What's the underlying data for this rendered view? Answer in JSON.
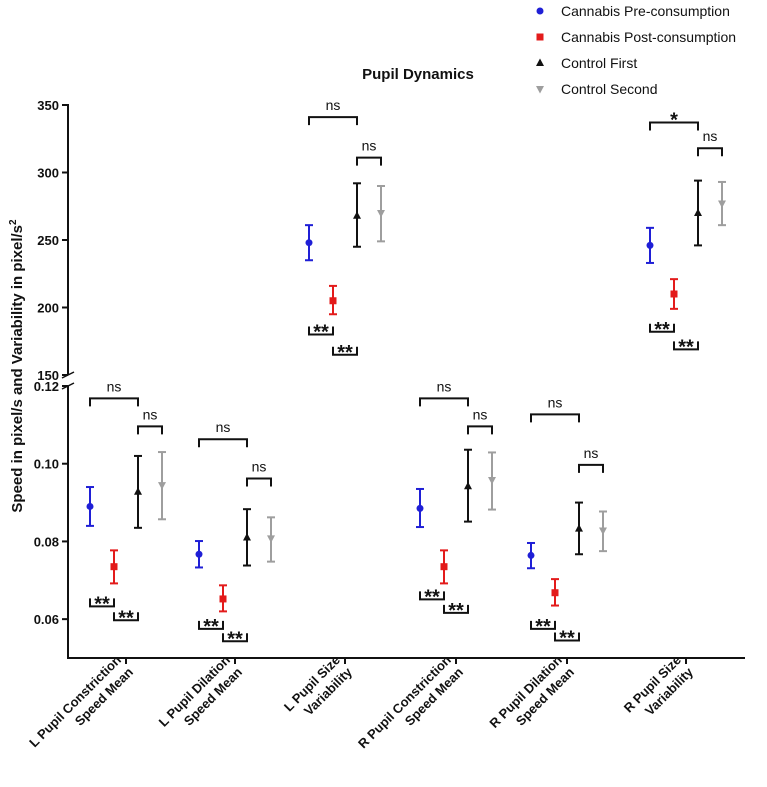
{
  "chart_data": {
    "type": "scatter",
    "title": "Pupil Dynamics",
    "ylabel": "Speed in pixel/s and Variability in pixel/s",
    "ylabel_sup": "2",
    "y_axis": {
      "broken": true,
      "lower": {
        "range": [
          0.05,
          0.12
        ],
        "ticks": [
          "0.06",
          "0.08",
          "0.10",
          "0.12"
        ]
      },
      "upper": {
        "range": [
          150,
          350
        ],
        "ticks": [
          "150",
          "200",
          "250",
          "300",
          "350"
        ]
      }
    },
    "categories": [
      [
        "L Pupil Constriction",
        "Speed Mean"
      ],
      [
        "L Pupil Dilation",
        "Speed Mean"
      ],
      [
        "L Pupil Size",
        "Variability"
      ],
      [
        "R Pupil Constriction",
        "Speed Mean"
      ],
      [
        "R Pupil Dilation",
        "Speed Mean"
      ],
      [
        "R Pupil Size",
        "Variability"
      ]
    ],
    "series": [
      {
        "name": "Cannabis Pre-consumption",
        "color": "#1f1fd6",
        "marker": "circle",
        "points": [
          {
            "mean": 0.089,
            "low": 0.084,
            "high": 0.094
          },
          {
            "mean": 0.0767,
            "low": 0.0733,
            "high": 0.0801
          },
          {
            "mean": 248,
            "low": 235,
            "high": 261
          },
          {
            "mean": 0.0885,
            "low": 0.0837,
            "high": 0.0935
          },
          {
            "mean": 0.0764,
            "low": 0.0731,
            "high": 0.0796
          },
          {
            "mean": 246,
            "low": 233,
            "high": 259
          }
        ]
      },
      {
        "name": "Cannabis Post-consumption",
        "color": "#e31b1b",
        "marker": "square",
        "points": [
          {
            "mean": 0.0735,
            "low": 0.0692,
            "high": 0.0777
          },
          {
            "mean": 0.0652,
            "low": 0.062,
            "high": 0.0687
          },
          {
            "mean": 205,
            "low": 195,
            "high": 216
          },
          {
            "mean": 0.0735,
            "low": 0.0692,
            "high": 0.0777
          },
          {
            "mean": 0.0668,
            "low": 0.0635,
            "high": 0.0703
          },
          {
            "mean": 210,
            "low": 199,
            "high": 221
          }
        ]
      },
      {
        "name": "Control First",
        "color": "#111111",
        "marker": "triangle-up",
        "points": [
          {
            "mean": 0.0928,
            "low": 0.0835,
            "high": 0.102
          },
          {
            "mean": 0.081,
            "low": 0.0738,
            "high": 0.0883
          },
          {
            "mean": 268,
            "low": 245,
            "high": 292
          },
          {
            "mean": 0.0942,
            "low": 0.0851,
            "high": 0.1036
          },
          {
            "mean": 0.0833,
            "low": 0.0767,
            "high": 0.09
          },
          {
            "mean": 270,
            "low": 246,
            "high": 294
          }
        ]
      },
      {
        "name": "Control Second",
        "color": "#9e9e9e",
        "marker": "triangle-down",
        "points": [
          {
            "mean": 0.0945,
            "low": 0.0857,
            "high": 0.103
          },
          {
            "mean": 0.0808,
            "low": 0.0748,
            "high": 0.0862
          },
          {
            "mean": 270,
            "low": 249,
            "high": 290
          },
          {
            "mean": 0.0958,
            "low": 0.0882,
            "high": 0.1029
          },
          {
            "mean": 0.0828,
            "low": 0.0775,
            "high": 0.0877
          },
          {
            "mean": 277,
            "low": 261,
            "high": 293
          }
        ]
      }
    ],
    "significance": [
      {
        "category": 0,
        "from": 0,
        "to": 2,
        "label": "ns",
        "level": 0.1168,
        "direction": "up"
      },
      {
        "category": 0,
        "from": 2,
        "to": 3,
        "label": "ns",
        "level": 0.1096,
        "direction": "up"
      },
      {
        "category": 0,
        "from": 0,
        "to": 1,
        "label": "**",
        "level": 0.0633,
        "direction": "down"
      },
      {
        "category": 0,
        "from": 1,
        "to": 2,
        "label": "**",
        "level": 0.0597,
        "direction": "down"
      },
      {
        "category": 1,
        "from": 0,
        "to": 2,
        "label": "ns",
        "level": 0.1063,
        "direction": "up"
      },
      {
        "category": 1,
        "from": 2,
        "to": 3,
        "label": "ns",
        "level": 0.0962,
        "direction": "up"
      },
      {
        "category": 1,
        "from": 0,
        "to": 1,
        "label": "**",
        "level": 0.0575,
        "direction": "down"
      },
      {
        "category": 1,
        "from": 1,
        "to": 2,
        "label": "**",
        "level": 0.0543,
        "direction": "down"
      },
      {
        "category": 2,
        "from": 0,
        "to": 2,
        "label": "ns",
        "level": 341,
        "direction": "up"
      },
      {
        "category": 2,
        "from": 2,
        "to": 3,
        "label": "ns",
        "level": 311,
        "direction": "up"
      },
      {
        "category": 2,
        "from": 0,
        "to": 1,
        "label": "**",
        "level": 180,
        "direction": "down"
      },
      {
        "category": 2,
        "from": 1,
        "to": 2,
        "label": "**",
        "level": 165,
        "direction": "down"
      },
      {
        "category": 3,
        "from": 0,
        "to": 2,
        "label": "ns",
        "level": 0.1168,
        "direction": "up"
      },
      {
        "category": 3,
        "from": 2,
        "to": 3,
        "label": "ns",
        "level": 0.1096,
        "direction": "up"
      },
      {
        "category": 3,
        "from": 0,
        "to": 1,
        "label": "**",
        "level": 0.0651,
        "direction": "down"
      },
      {
        "category": 3,
        "from": 1,
        "to": 2,
        "label": "**",
        "level": 0.0616,
        "direction": "down"
      },
      {
        "category": 4,
        "from": 0,
        "to": 2,
        "label": "ns",
        "level": 0.1127,
        "direction": "up"
      },
      {
        "category": 4,
        "from": 2,
        "to": 3,
        "label": "ns",
        "level": 0.0997,
        "direction": "up"
      },
      {
        "category": 4,
        "from": 0,
        "to": 1,
        "label": "**",
        "level": 0.0575,
        "direction": "down"
      },
      {
        "category": 4,
        "from": 1,
        "to": 2,
        "label": "**",
        "level": 0.0545,
        "direction": "down"
      },
      {
        "category": 5,
        "from": 0,
        "to": 2,
        "label": "*",
        "level": 337,
        "direction": "up"
      },
      {
        "category": 5,
        "from": 2,
        "to": 3,
        "label": "ns",
        "level": 318,
        "direction": "up"
      },
      {
        "category": 5,
        "from": 0,
        "to": 1,
        "label": "**",
        "level": 182,
        "direction": "down"
      },
      {
        "category": 5,
        "from": 1,
        "to": 2,
        "label": "**",
        "level": 169,
        "direction": "down"
      }
    ],
    "legend_position": "top-right",
    "grid": false
  }
}
